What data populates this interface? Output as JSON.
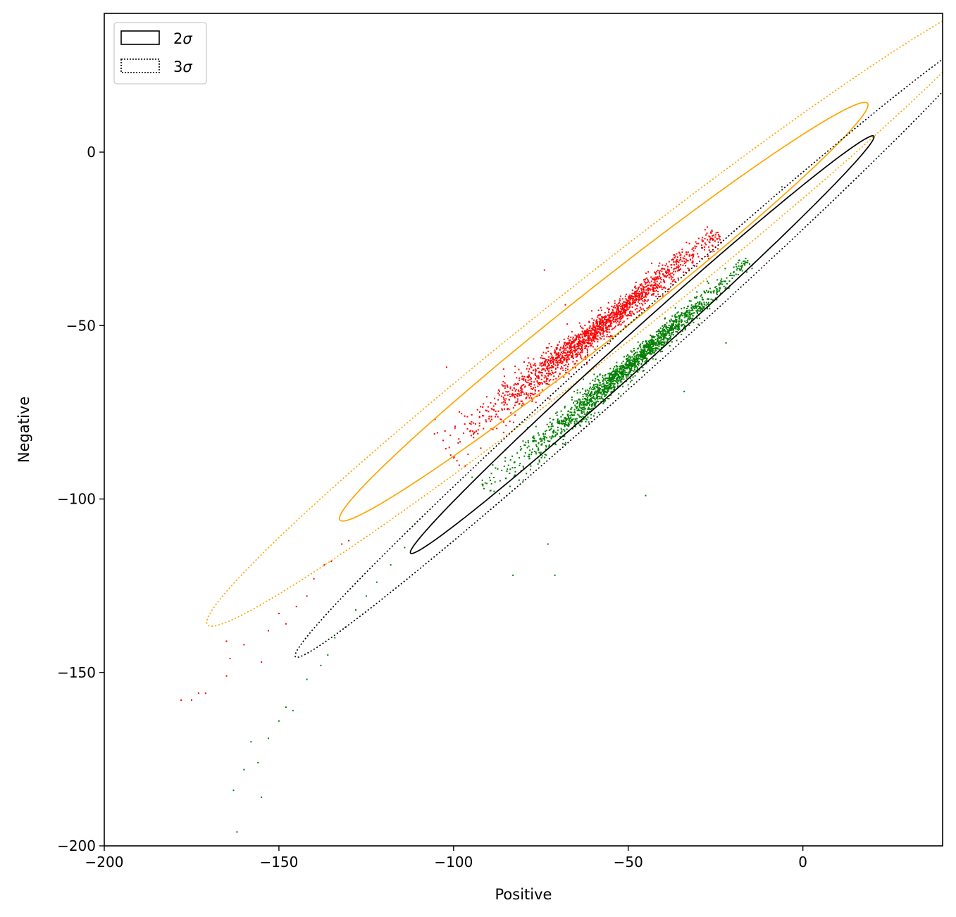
{
  "chart_data": {
    "type": "scatter",
    "title": "",
    "xlabel": "Positive",
    "ylabel": "Negative",
    "xlim": [
      -200,
      40
    ],
    "ylim": [
      -200,
      40
    ],
    "xticks": [
      -200,
      -150,
      -100,
      -50,
      0
    ],
    "yticks": [
      -200,
      -150,
      -100,
      -50,
      0
    ],
    "xtick_labels": [
      "−200",
      "−150",
      "−100",
      "−50",
      "0"
    ],
    "ytick_labels": [
      "−200",
      "−150",
      "−100",
      "−50",
      "0"
    ],
    "grid": false,
    "legend": {
      "placement": "top-left",
      "entries": [
        {
          "label_num": "2",
          "label_sym": "σ",
          "style": "solid"
        },
        {
          "label_num": "3",
          "label_sym": "σ",
          "style": "dotted"
        }
      ]
    },
    "series": [
      {
        "color": "#ff0000",
        "marker": "point",
        "count": 1800,
        "distribution": {
          "mean": [
            -60,
            -52
          ],
          "sd_major": 21,
          "sd_minor": 1.6,
          "angle_deg": 38.5
        },
        "outliers": [
          [
            -178,
            -158
          ],
          [
            -175,
            -158
          ],
          [
            -173,
            -156
          ],
          [
            -171,
            -156
          ],
          [
            -165,
            -151
          ],
          [
            -164,
            -146
          ],
          [
            -165,
            -141
          ],
          [
            -160,
            -142
          ],
          [
            -155,
            -147
          ],
          [
            -153,
            -138
          ],
          [
            -150,
            -133
          ],
          [
            -148,
            -136
          ],
          [
            -145,
            -131
          ],
          [
            -142,
            -128
          ],
          [
            -140,
            -123
          ],
          [
            -137,
            -119
          ],
          [
            -135,
            -118
          ],
          [
            -132,
            -113
          ],
          [
            -130,
            -112
          ],
          [
            -102,
            -62
          ],
          [
            -74,
            -34
          ],
          [
            -68,
            -44
          ]
        ]
      },
      {
        "color": "#008000",
        "marker": "point",
        "count": 1800,
        "distribution": {
          "mean": [
            -50,
            -62
          ],
          "sd_major": 21,
          "sd_minor": 1.3,
          "angle_deg": 41.5
        },
        "outliers": [
          [
            -162,
            -196
          ],
          [
            -163,
            -184
          ],
          [
            -160,
            -178
          ],
          [
            -158,
            -170
          ],
          [
            -156,
            -176
          ],
          [
            -155,
            -186
          ],
          [
            -153,
            -169
          ],
          [
            -150,
            -164
          ],
          [
            -148,
            -160
          ],
          [
            -146,
            -161
          ],
          [
            -142,
            -152
          ],
          [
            -138,
            -148
          ],
          [
            -136,
            -145
          ],
          [
            -134,
            -140
          ],
          [
            -131,
            -137
          ],
          [
            -128,
            -132
          ],
          [
            -125,
            -128
          ],
          [
            -122,
            -124
          ],
          [
            -118,
            -119
          ],
          [
            -114,
            -114
          ],
          [
            -83,
            -122
          ],
          [
            -71,
            -122
          ],
          [
            -73,
            -113
          ],
          [
            -45,
            -99
          ],
          [
            -34,
            -69
          ],
          [
            -22,
            -55
          ],
          [
            -6,
            -10
          ]
        ]
      }
    ],
    "ellipses": [
      {
        "group": "red",
        "level": "2σ",
        "center": [
          -57,
          -46
        ],
        "semi_major": 96.5,
        "semi_minor": 7.4,
        "angle_deg": 38.5,
        "color": "#ffa500",
        "style": "solid"
      },
      {
        "group": "red",
        "level": "3σ",
        "center": [
          -57,
          -46
        ],
        "semi_major": 145,
        "semi_minor": 11.1,
        "angle_deg": 38.5,
        "color": "#ffa500",
        "style": "dotted"
      },
      {
        "group": "green",
        "level": "2σ",
        "center": [
          -46,
          -55.5
        ],
        "semi_major": 89.5,
        "semi_minor": 4.6,
        "angle_deg": 42.2,
        "color": "#000000",
        "style": "solid"
      },
      {
        "group": "green",
        "level": "3σ",
        "center": [
          -46,
          -55.5
        ],
        "semi_major": 134,
        "semi_minor": 6.9,
        "angle_deg": 42.2,
        "color": "#000000",
        "style": "dotted"
      }
    ]
  }
}
